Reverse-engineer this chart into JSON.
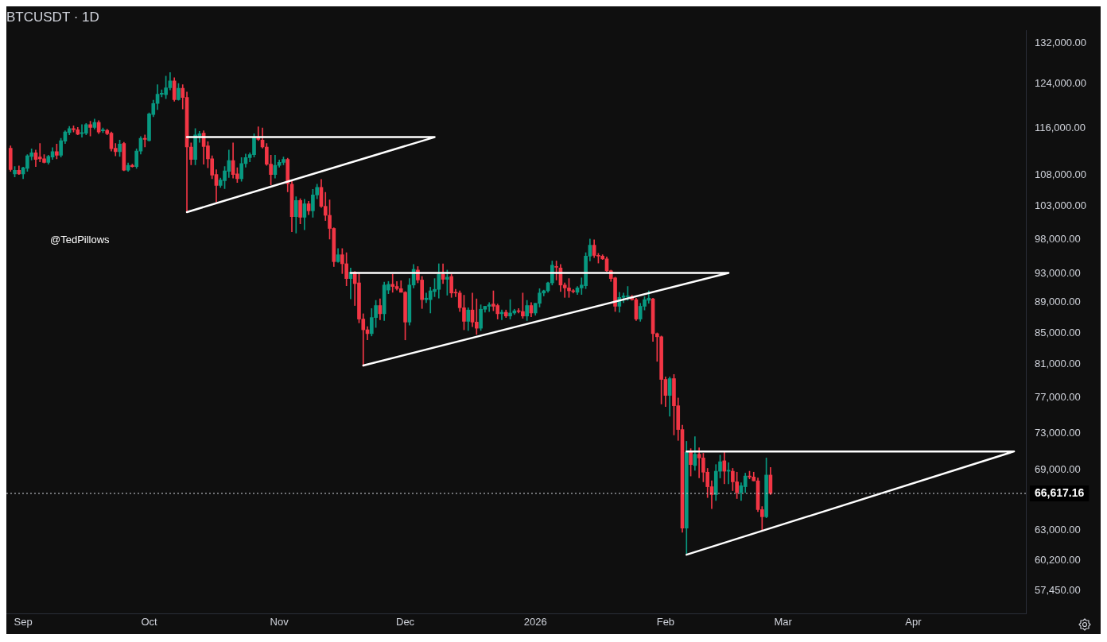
{
  "chart_data": {
    "type": "candlestick",
    "title": "BTCUSDT · 1D",
    "annotations": [
      "@TedPillows"
    ],
    "x": [
      "2025-08-29",
      "2025-08-30",
      "2025-08-31",
      "2025-09-01",
      "2025-09-02",
      "2025-09-03",
      "2025-09-04",
      "2025-09-05",
      "2025-09-06",
      "2025-09-07",
      "2025-09-08",
      "2025-09-09",
      "2025-09-10",
      "2025-09-11",
      "2025-09-12",
      "2025-09-13",
      "2025-09-14",
      "2025-09-15",
      "2025-09-16",
      "2025-09-17",
      "2025-09-18",
      "2025-09-19",
      "2025-09-20",
      "2025-09-21",
      "2025-09-22",
      "2025-09-23",
      "2025-09-24",
      "2025-09-25",
      "2025-09-26",
      "2025-09-27",
      "2025-09-28",
      "2025-09-29",
      "2025-09-30",
      "2025-10-01",
      "2025-10-02",
      "2025-10-03",
      "2025-10-04",
      "2025-10-05",
      "2025-10-06",
      "2025-10-07",
      "2025-10-08",
      "2025-10-09",
      "2025-10-10",
      "2025-10-11",
      "2025-10-12",
      "2025-10-13",
      "2025-10-14",
      "2025-10-15",
      "2025-10-16",
      "2025-10-17",
      "2025-10-18",
      "2025-10-19",
      "2025-10-20",
      "2025-10-21",
      "2025-10-22",
      "2025-10-23",
      "2025-10-24",
      "2025-10-25",
      "2025-10-26",
      "2025-10-27",
      "2025-10-28",
      "2025-10-29",
      "2025-10-30",
      "2025-10-31",
      "2025-11-01",
      "2025-11-02",
      "2025-11-03",
      "2025-11-04",
      "2025-11-05",
      "2025-11-06",
      "2025-11-07",
      "2025-11-08",
      "2025-11-09",
      "2025-11-10",
      "2025-11-11",
      "2025-11-12",
      "2025-11-13",
      "2025-11-14",
      "2025-11-15",
      "2025-11-16",
      "2025-11-17",
      "2025-11-18",
      "2025-11-19",
      "2025-11-20",
      "2025-11-21",
      "2025-11-22",
      "2025-11-23",
      "2025-11-24",
      "2025-11-25",
      "2025-11-26",
      "2025-11-27",
      "2025-11-28",
      "2025-11-29",
      "2025-11-30",
      "2025-12-01",
      "2025-12-02",
      "2025-12-03",
      "2025-12-04",
      "2025-12-05",
      "2025-12-06",
      "2025-12-07",
      "2025-12-08",
      "2025-12-09",
      "2025-12-10",
      "2025-12-11",
      "2025-12-12",
      "2025-12-13",
      "2025-12-14",
      "2025-12-15",
      "2025-12-16",
      "2025-12-17",
      "2025-12-18",
      "2025-12-19",
      "2025-12-20",
      "2025-12-21",
      "2025-12-22",
      "2025-12-23",
      "2025-12-24",
      "2025-12-25",
      "2025-12-26",
      "2025-12-27",
      "2025-12-28",
      "2025-12-29",
      "2025-12-30",
      "2025-12-31",
      "2026-01-01",
      "2026-01-02",
      "2026-01-03",
      "2026-01-04",
      "2026-01-05",
      "2026-01-06",
      "2026-01-07",
      "2026-01-08",
      "2026-01-09",
      "2026-01-10",
      "2026-01-11",
      "2026-01-12",
      "2026-01-13",
      "2026-01-14",
      "2026-01-15",
      "2026-01-16",
      "2026-01-17",
      "2026-01-18",
      "2026-01-19",
      "2026-01-20",
      "2026-01-21",
      "2026-01-22",
      "2026-01-23",
      "2026-01-24",
      "2026-01-25",
      "2026-01-26",
      "2026-01-27",
      "2026-01-28",
      "2026-01-29",
      "2026-01-30",
      "2026-01-31",
      "2026-02-01",
      "2026-02-02",
      "2026-02-03",
      "2026-02-04",
      "2026-02-05",
      "2026-02-06",
      "2026-02-07",
      "2026-02-08",
      "2026-02-09",
      "2026-02-10",
      "2026-02-11",
      "2026-02-12",
      "2026-02-13",
      "2026-02-14",
      "2026-02-15",
      "2026-02-16",
      "2026-02-17",
      "2026-02-18",
      "2026-02-19",
      "2026-02-20",
      "2026-02-21",
      "2026-02-22",
      "2026-02-23",
      "2026-02-24",
      "2026-02-25",
      "2026-02-26"
    ],
    "ohlc": [
      [
        112500,
        112900,
        108600,
        108900
      ],
      [
        108200,
        109400,
        107700,
        108800
      ],
      [
        108800,
        109500,
        108100,
        108200
      ],
      [
        108200,
        109300,
        107400,
        109200
      ],
      [
        109100,
        111400,
        108600,
        111200
      ],
      [
        111100,
        112400,
        110500,
        111700
      ],
      [
        111700,
        112200,
        109400,
        110600
      ],
      [
        111000,
        113300,
        110200,
        110700
      ],
      [
        110700,
        111400,
        110000,
        110100
      ],
      [
        110100,
        111300,
        109800,
        111100
      ],
      [
        111000,
        112600,
        110600,
        111900
      ],
      [
        111900,
        113200,
        110700,
        111300
      ],
      [
        111300,
        114200,
        111000,
        113800
      ],
      [
        113700,
        115500,
        113300,
        115300
      ],
      [
        115200,
        116300,
        114800,
        115900
      ],
      [
        115900,
        116400,
        115300,
        115700
      ],
      [
        115700,
        116100,
        114800,
        114900
      ],
      [
        115000,
        116600,
        114400,
        115200
      ],
      [
        115100,
        116800,
        114800,
        116600
      ],
      [
        116600,
        117200,
        114600,
        116100
      ],
      [
        116100,
        117600,
        115800,
        117000
      ],
      [
        117000,
        117300,
        115000,
        115300
      ],
      [
        115500,
        116000,
        115200,
        115700
      ],
      [
        115600,
        115800,
        114800,
        115000
      ],
      [
        115100,
        115300,
        112000,
        112400
      ],
      [
        112500,
        113300,
        111200,
        111900
      ],
      [
        111900,
        113900,
        111100,
        113200
      ],
      [
        113300,
        113500,
        108700,
        108800
      ],
      [
        108800,
        110000,
        108600,
        109600
      ],
      [
        109600,
        109800,
        109300,
        109400
      ],
      [
        109400,
        112400,
        109100,
        112000
      ],
      [
        112000,
        114500,
        111500,
        114200
      ],
      [
        114200,
        114800,
        112700,
        114000
      ],
      [
        113800,
        118700,
        113700,
        118500
      ],
      [
        118400,
        121000,
        118000,
        120400
      ],
      [
        120400,
        123900,
        119300,
        122100
      ],
      [
        122100,
        122900,
        121600,
        122300
      ],
      [
        122000,
        125500,
        121300,
        123300
      ],
      [
        123300,
        126200,
        122900,
        124600
      ],
      [
        124600,
        125200,
        120800,
        121100
      ],
      [
        121100,
        124100,
        121000,
        123200
      ],
      [
        123200,
        123900,
        119400,
        121500
      ],
      [
        121500,
        122500,
        102000,
        112700
      ],
      [
        112700,
        113400,
        109700,
        110600
      ],
      [
        110600,
        115900,
        109700,
        114800
      ],
      [
        114600,
        115400,
        113500,
        115000
      ],
      [
        115100,
        115500,
        109800,
        112800
      ],
      [
        112900,
        113600,
        109200,
        110700
      ],
      [
        110700,
        111200,
        107400,
        108000
      ],
      [
        108100,
        108900,
        103700,
        106300
      ],
      [
        106300,
        107500,
        106000,
        107200
      ],
      [
        107100,
        109400,
        105800,
        108700
      ],
      [
        108600,
        112200,
        107600,
        110400
      ],
      [
        110400,
        113400,
        107500,
        108100
      ],
      [
        108200,
        109200,
        106800,
        107400
      ],
      [
        107400,
        110900,
        107000,
        109900
      ],
      [
        109900,
        111500,
        109300,
        110900
      ],
      [
        110900,
        111700,
        110200,
        111400
      ],
      [
        111400,
        115000,
        111000,
        114400
      ],
      [
        114400,
        116200,
        113800,
        114000
      ],
      [
        113900,
        116000,
        112500,
        112700
      ],
      [
        112700,
        113300,
        109600,
        109800
      ],
      [
        109800,
        111300,
        106400,
        108100
      ],
      [
        108100,
        111300,
        107500,
        109600
      ],
      [
        109600,
        110500,
        109300,
        110100
      ],
      [
        110100,
        111000,
        109700,
        110600
      ],
      [
        110600,
        110800,
        105300,
        106600
      ],
      [
        106500,
        107200,
        99100,
        101400
      ],
      [
        101400,
        104500,
        98900,
        103900
      ],
      [
        103900,
        104200,
        100300,
        101300
      ],
      [
        101300,
        104100,
        99400,
        103400
      ],
      [
        103400,
        103800,
        101700,
        102300
      ],
      [
        102300,
        105700,
        101300,
        104800
      ],
      [
        104800,
        106500,
        104200,
        106000
      ],
      [
        106000,
        107300,
        102800,
        103000
      ],
      [
        103000,
        105200,
        100800,
        101600
      ],
      [
        101600,
        104000,
        98000,
        99600
      ],
      [
        99600,
        99700,
        94000,
        94700
      ],
      [
        94700,
        96600,
        94600,
        95700
      ],
      [
        95700,
        96600,
        93000,
        94400
      ],
      [
        94400,
        96000,
        91300,
        92300
      ],
      [
        92300,
        93800,
        89500,
        93200
      ],
      [
        93200,
        93300,
        88600,
        91600
      ],
      [
        91700,
        93100,
        86300,
        86800
      ],
      [
        86800,
        87500,
        80800,
        85400
      ],
      [
        85400,
        85800,
        84100,
        84900
      ],
      [
        84900,
        88200,
        84600,
        87000
      ],
      [
        87000,
        89300,
        85700,
        88600
      ],
      [
        88600,
        89500,
        86700,
        87500
      ],
      [
        87500,
        91800,
        86600,
        91400
      ],
      [
        90700,
        91900,
        90200,
        91500
      ],
      [
        91500,
        92900,
        90400,
        91200
      ],
      [
        91200,
        91900,
        90700,
        90900
      ],
      [
        90900,
        92000,
        90400,
        90400
      ],
      [
        90400,
        90500,
        84100,
        86400
      ],
      [
        86400,
        92300,
        86000,
        91400
      ],
      [
        91400,
        94300,
        91000,
        93600
      ],
      [
        93500,
        94000,
        91700,
        92100
      ],
      [
        92100,
        92600,
        88200,
        89400
      ],
      [
        89400,
        90300,
        89000,
        89600
      ],
      [
        89400,
        91100,
        87600,
        90600
      ],
      [
        90500,
        92300,
        89800,
        90800
      ],
      [
        90800,
        94400,
        89600,
        92900
      ],
      [
        92900,
        94400,
        91600,
        92200
      ],
      [
        92200,
        93500,
        90000,
        92500
      ],
      [
        92600,
        92900,
        89700,
        90300
      ],
      [
        90400,
        90800,
        89800,
        90300
      ],
      [
        90300,
        90600,
        87800,
        88300
      ],
      [
        88300,
        90000,
        85400,
        86500
      ],
      [
        86500,
        88300,
        85300,
        88000
      ],
      [
        88000,
        90300,
        85800,
        86400
      ],
      [
        86400,
        89500,
        84800,
        85600
      ],
      [
        85600,
        88700,
        85300,
        88100
      ],
      [
        88100,
        88500,
        87700,
        88500
      ],
      [
        88500,
        89000,
        87800,
        88700
      ],
      [
        88800,
        90600,
        87900,
        88500
      ],
      [
        88600,
        88800,
        86800,
        87500
      ],
      [
        87500,
        88000,
        86700,
        87700
      ],
      [
        87700,
        88000,
        87000,
        87200
      ],
      [
        87200,
        89400,
        86800,
        87600
      ],
      [
        87600,
        88100,
        87400,
        87900
      ],
      [
        87900,
        88200,
        87600,
        87800
      ],
      [
        87800,
        90300,
        86900,
        87200
      ],
      [
        87200,
        89300,
        86600,
        88600
      ],
      [
        88600,
        89000,
        87100,
        87600
      ],
      [
        87600,
        88900,
        87300,
        88900
      ],
      [
        88900,
        90900,
        88400,
        90300
      ],
      [
        90300,
        90700,
        89900,
        90600
      ],
      [
        90600,
        91800,
        90400,
        91700
      ],
      [
        91700,
        94800,
        91400,
        94200
      ],
      [
        94000,
        94800,
        92100,
        93900
      ],
      [
        93800,
        94300,
        90500,
        91400
      ],
      [
        91400,
        91700,
        89700,
        91000
      ],
      [
        91000,
        92300,
        89700,
        90600
      ],
      [
        90600,
        90800,
        90300,
        90500
      ],
      [
        90400,
        91200,
        90100,
        91000
      ],
      [
        91000,
        92400,
        90100,
        91400
      ],
      [
        91300,
        96000,
        90900,
        95500
      ],
      [
        95500,
        98000,
        94800,
        97100
      ],
      [
        97100,
        97900,
        95300,
        95600
      ],
      [
        95600,
        95900,
        94500,
        95500
      ],
      [
        95500,
        95700,
        95000,
        95100
      ],
      [
        95100,
        95400,
        93300,
        93400
      ],
      [
        93400,
        93500,
        91900,
        92300
      ],
      [
        92400,
        92500,
        87800,
        88500
      ],
      [
        88500,
        90400,
        87700,
        89700
      ],
      [
        89700,
        90300,
        89000,
        89900
      ],
      [
        89800,
        91200,
        89300,
        89900
      ],
      [
        89800,
        90000,
        89300,
        89400
      ],
      [
        89400,
        89600,
        86600,
        86800
      ],
      [
        86800,
        88900,
        86500,
        88500
      ],
      [
        88500,
        89800,
        88000,
        89400
      ],
      [
        89300,
        90600,
        88900,
        89600
      ],
      [
        89500,
        89600,
        83900,
        84900
      ],
      [
        84900,
        85000,
        81400,
        84500
      ],
      [
        84500,
        84600,
        76300,
        79200
      ],
      [
        79200,
        79500,
        76000,
        77300
      ],
      [
        77300,
        79500,
        74900,
        79300
      ],
      [
        79300,
        79800,
        72800,
        76100
      ],
      [
        76100,
        77000,
        72200,
        73400
      ],
      [
        73400,
        73900,
        62800,
        63200
      ],
      [
        63200,
        72100,
        60800,
        70900
      ],
      [
        70900,
        71300,
        68400,
        69600
      ],
      [
        69500,
        72600,
        69000,
        70700
      ],
      [
        70700,
        71400,
        68200,
        70300
      ],
      [
        70300,
        70800,
        67800,
        68800
      ],
      [
        68800,
        69200,
        66200,
        67300
      ],
      [
        67300,
        67900,
        65100,
        66500
      ],
      [
        66500,
        69600,
        65900,
        68900
      ],
      [
        68900,
        70600,
        68200,
        69900
      ],
      [
        70000,
        71000,
        67600,
        68900
      ],
      [
        68900,
        69800,
        67600,
        69000
      ],
      [
        68900,
        69200,
        66900,
        67800
      ],
      [
        67800,
        68800,
        66100,
        66700
      ],
      [
        66700,
        67700,
        65900,
        67400
      ],
      [
        67300,
        68700,
        66700,
        68400
      ],
      [
        68400,
        68900,
        68100,
        68300
      ],
      [
        68300,
        68800,
        67900,
        67900
      ],
      [
        67900,
        68200,
        64800,
        65000
      ],
      [
        65000,
        65300,
        62900,
        64300
      ],
      [
        64300,
        70300,
        64200,
        68500
      ],
      [
        68500,
        69300,
        66500,
        66617.16
      ]
    ],
    "series": [
      {
        "type": "line",
        "color": "#ffffff",
        "x": [
          "2025-10-10",
          "2025-12-08",
          "2025-10-10"
        ],
        "values": [
          114400,
          114400,
          102100
        ]
      },
      {
        "type": "line",
        "color": "#ffffff",
        "x": [
          "2025-11-18",
          "2026-02-16",
          "2025-11-21"
        ],
        "values": [
          93100,
          93100,
          80900
        ]
      },
      {
        "type": "line",
        "color": "#ffffff",
        "x": [
          "2026-02-06",
          "2026-04-25",
          "2026-02-06"
        ],
        "values": [
          71000,
          71000,
          60700
        ]
      }
    ],
    "ref_lines": [
      {
        "axis": "y",
        "value": 66617.16,
        "label": "66,617.16",
        "line_style": "dotted",
        "color": "#d1d4dc"
      }
    ],
    "log": true,
    "xlim": [
      "2025-08-28",
      "2026-04-28"
    ],
    "xticks": [
      {
        "value": "2025-09-01",
        "label": "Sep"
      },
      {
        "value": "2025-10-01",
        "label": "Oct"
      },
      {
        "value": "2025-11-01",
        "label": "Nov"
      },
      {
        "value": "2025-12-01",
        "label": "Dec"
      },
      {
        "value": "2026-01-01",
        "label": "2026"
      },
      {
        "value": "2026-02-01",
        "label": "Feb"
      },
      {
        "value": "2026-03-01",
        "label": "Mar"
      },
      {
        "value": "2026-04-01",
        "label": "Apr"
      }
    ],
    "ylim": [
      55500,
      134500
    ],
    "yticks": [
      {
        "value": 132000,
        "label": "132,000.00"
      },
      {
        "value": 124000,
        "label": "124,000.00"
      },
      {
        "value": 116000,
        "label": "116,000.00"
      },
      {
        "value": 108000,
        "label": "108,000.00"
      },
      {
        "value": 103000,
        "label": "103,000.00"
      },
      {
        "value": 98000,
        "label": "98,000.00"
      },
      {
        "value": 93000,
        "label": "93,000.00"
      },
      {
        "value": 89000,
        "label": "89,000.00"
      },
      {
        "value": 85000,
        "label": "85,000.00"
      },
      {
        "value": 81000,
        "label": "81,000.00"
      },
      {
        "value": 77000,
        "label": "77,000.00"
      },
      {
        "value": 73000,
        "label": "73,000.00"
      },
      {
        "value": 69000,
        "label": "69,000.00"
      },
      {
        "value": 63000,
        "label": "63,000.00"
      },
      {
        "value": 60200,
        "label": "60,200.00"
      },
      {
        "value": 57450,
        "label": "57,450.00"
      }
    ]
  }
}
